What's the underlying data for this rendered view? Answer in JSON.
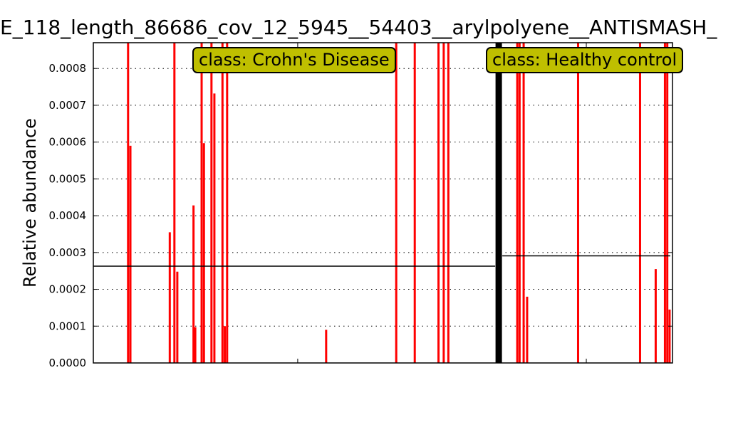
{
  "chart_data": {
    "type": "bar",
    "title": "E_118_length_86686_cov_12_5945__54403__arylpolyene__ANTISMASH_",
    "xlabel": "",
    "ylabel": "Relative abundance",
    "ylim": [
      0,
      0.00087
    ],
    "yticks": [
      "0.0000",
      "0.0001",
      "0.0002",
      "0.0003",
      "0.0004",
      "0.0005",
      "0.0006",
      "0.0007",
      "0.0008"
    ],
    "grid": true,
    "sample_count": 100,
    "classes": [
      {
        "label": "class: Crohn's Disease",
        "start": 0,
        "end": 70,
        "mean": 0.000263
      },
      {
        "label": "class: Healthy control",
        "start": 70,
        "end": 100,
        "mean": 0.000291
      }
    ],
    "bars": [
      {
        "x": 6,
        "value": 0.00087
      },
      {
        "x": 6.4,
        "value": 0.00059
      },
      {
        "x": 13.2,
        "value": 0.000355
      },
      {
        "x": 14,
        "value": 0.00087
      },
      {
        "x": 14.5,
        "value": 0.000248
      },
      {
        "x": 17.3,
        "value": 0.000428
      },
      {
        "x": 17.6,
        "value": 9.7e-05
      },
      {
        "x": 18.7,
        "value": 0.00087
      },
      {
        "x": 19.1,
        "value": 0.000597
      },
      {
        "x": 20.4,
        "value": 0.00087
      },
      {
        "x": 20.9,
        "value": 0.000732
      },
      {
        "x": 22.3,
        "value": 0.00087
      },
      {
        "x": 22.7,
        "value": 0.0001
      },
      {
        "x": 23.1,
        "value": 0.00087
      },
      {
        "x": 40.2,
        "value": 9e-05
      },
      {
        "x": 52.3,
        "value": 0.00087
      },
      {
        "x": 55.5,
        "value": 0.00087
      },
      {
        "x": 59.6,
        "value": 0.00087
      },
      {
        "x": 60.5,
        "value": 0.00087
      },
      {
        "x": 61.3,
        "value": 0.00087
      },
      {
        "x": 73.2,
        "value": 0.00087
      },
      {
        "x": 73.6,
        "value": 0.00087
      },
      {
        "x": 74.3,
        "value": 0.00087
      },
      {
        "x": 74.9,
        "value": 0.00018
      },
      {
        "x": 83.7,
        "value": 0.00087
      },
      {
        "x": 94.4,
        "value": 0.00087
      },
      {
        "x": 97.1,
        "value": 0.000255
      },
      {
        "x": 98.7,
        "value": 0.00087
      },
      {
        "x": 99.1,
        "value": 0.00087
      },
      {
        "x": 99.5,
        "value": 0.000145
      }
    ],
    "colors": {
      "bar": "#ff0000",
      "divider": "#000000",
      "label_bg": "#bfbf00"
    }
  }
}
